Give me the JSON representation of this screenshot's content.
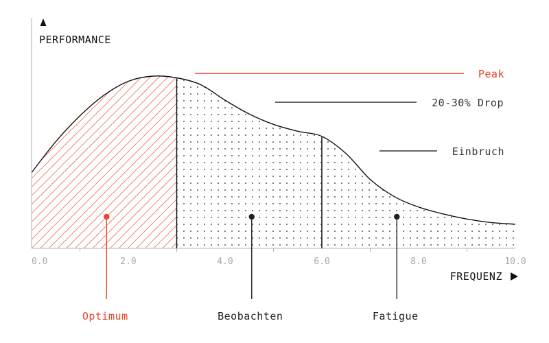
{
  "chart_data": {
    "type": "area",
    "ylabel": "PERFORMANCE",
    "xlabel": "FREQUENZ",
    "xlim": [
      0,
      10
    ],
    "x_ticks": [
      "0.0",
      "2.0",
      "4.0",
      "6.0",
      "8.0",
      "10.0"
    ],
    "grid": false,
    "curve": {
      "x": [
        0.0,
        0.5,
        1.0,
        1.5,
        2.0,
        2.5,
        3.0,
        3.5,
        4.0,
        4.5,
        5.0,
        5.5,
        6.0,
        6.5,
        7.0,
        7.5,
        8.0,
        8.5,
        9.0,
        9.5,
        10.0
      ],
      "y": [
        0.44,
        0.62,
        0.77,
        0.89,
        0.97,
        1.0,
        0.99,
        0.95,
        0.86,
        0.78,
        0.72,
        0.68,
        0.65,
        0.55,
        0.4,
        0.3,
        0.24,
        0.2,
        0.17,
        0.15,
        0.14
      ]
    },
    "zones": [
      {
        "label": "Optimum",
        "from": 0,
        "to": 3.0,
        "marker_x": 1.55,
        "pattern": "hatch",
        "color": "#e8472b"
      },
      {
        "label": "Beobachten",
        "from": 3.0,
        "to": 6.0,
        "marker_x": 4.55,
        "pattern": "dots",
        "color": "#222222"
      },
      {
        "label": "Fatigue",
        "from": 6.0,
        "to": 10.0,
        "marker_x": 7.55,
        "pattern": "dots",
        "color": "#222222"
      }
    ],
    "annotations": [
      {
        "text": "Peak",
        "color": "#e8472b"
      },
      {
        "text": "20-30% Drop",
        "color": "#333333"
      },
      {
        "text": "Einbruch",
        "color": "#333333"
      }
    ]
  }
}
